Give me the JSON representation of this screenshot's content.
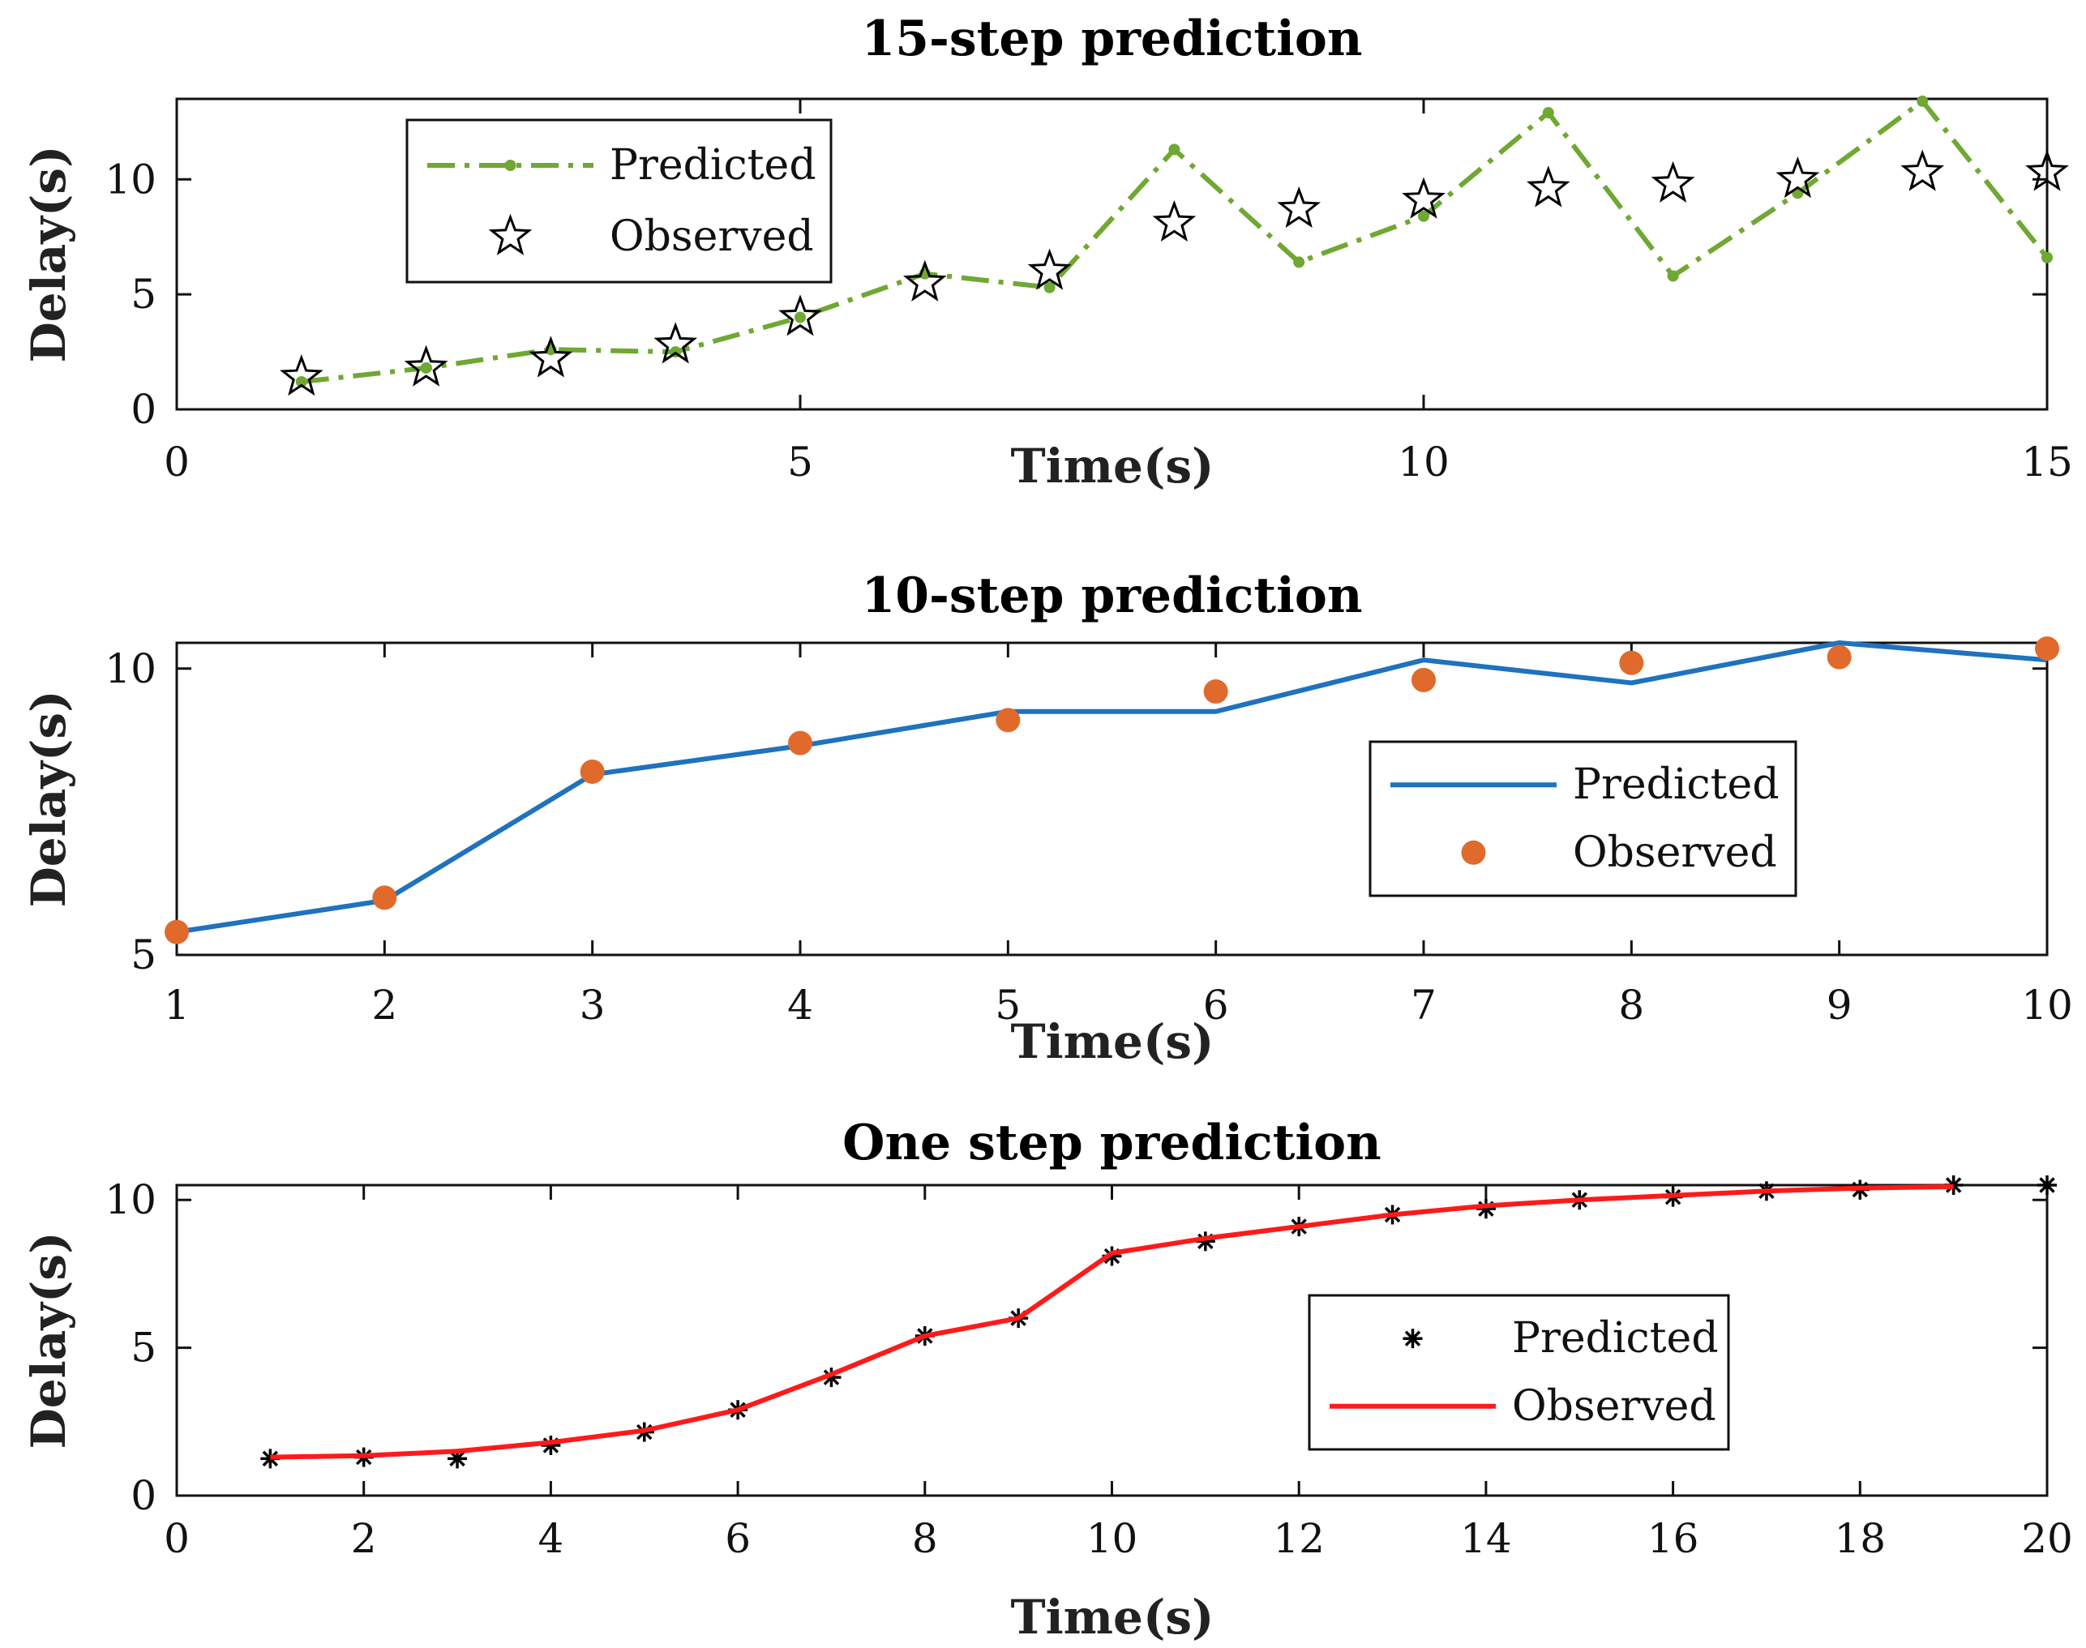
{
  "chart_data": [
    {
      "type": "line",
      "title": "15-step prediction",
      "xlabel": "Time(s)",
      "ylabel": "Delay(s)",
      "xlim": [
        0,
        15
      ],
      "ylim": [
        0,
        13.5
      ],
      "xticks": [
        0,
        5,
        10,
        15
      ],
      "yticks": [
        0,
        5,
        10
      ],
      "grid": false,
      "legend_position": "top-left",
      "series": [
        {
          "name": "Predicted",
          "style": "dash-dot with point markers",
          "color": "#6fa832",
          "x": [
            1,
            2,
            3,
            4,
            5,
            6,
            7,
            8,
            9,
            10,
            11,
            12,
            13,
            14,
            15
          ],
          "y": [
            1.2,
            1.8,
            2.6,
            2.5,
            4.0,
            5.9,
            5.3,
            11.3,
            6.4,
            8.4,
            12.9,
            5.8,
            9.4,
            13.4,
            6.6
          ]
        },
        {
          "name": "Observed",
          "style": "pentagram markers",
          "color": "#000000",
          "x": [
            1,
            2,
            3,
            4,
            5,
            6,
            7,
            8,
            9,
            10,
            11,
            12,
            13,
            14,
            15
          ],
          "y": [
            1.4,
            1.8,
            2.2,
            2.8,
            4.0,
            5.5,
            6.0,
            8.1,
            8.7,
            9.1,
            9.6,
            9.8,
            10.0,
            10.3,
            10.3
          ]
        }
      ]
    },
    {
      "type": "line",
      "title": "10-step prediction",
      "xlabel": "Time(s)",
      "ylabel": "Delay(s)",
      "xlim": [
        1,
        10
      ],
      "ylim": [
        5,
        10.45
      ],
      "xticks": [
        1,
        2,
        3,
        4,
        5,
        6,
        7,
        8,
        9,
        10
      ],
      "yticks": [
        5,
        10
      ],
      "grid": false,
      "legend_position": "right",
      "series": [
        {
          "name": "Predicted",
          "style": "solid line",
          "color": "#1f72bd",
          "x": [
            1,
            2,
            3,
            4,
            5,
            6,
            7,
            8,
            9,
            10
          ],
          "y": [
            5.4,
            5.95,
            8.15,
            8.65,
            9.25,
            9.25,
            10.15,
            9.75,
            10.45,
            10.15
          ]
        },
        {
          "name": "Observed",
          "style": "filled circle markers",
          "color": "#e06a2c",
          "x": [
            1,
            2,
            3,
            4,
            5,
            6,
            7,
            8,
            9,
            10
          ],
          "y": [
            5.4,
            6.0,
            8.2,
            8.7,
            9.1,
            9.6,
            9.8,
            10.1,
            10.2,
            10.35
          ]
        }
      ]
    },
    {
      "type": "line",
      "title": "One step prediction",
      "xlabel": "Time(s)",
      "ylabel": "Delay(s)",
      "xlim": [
        0,
        20
      ],
      "ylim": [
        0,
        10.5
      ],
      "xticks": [
        0,
        2,
        4,
        6,
        8,
        10,
        12,
        14,
        16,
        18,
        20
      ],
      "yticks": [
        0,
        5,
        10
      ],
      "grid": false,
      "legend_position": "right",
      "series": [
        {
          "name": "Predicted",
          "style": "asterisk markers",
          "color": "#000000",
          "x": [
            1,
            2,
            3,
            4,
            5,
            6,
            7,
            8,
            9,
            10,
            11,
            12,
            13,
            14,
            15,
            16,
            17,
            18,
            19,
            20
          ],
          "y": [
            1.25,
            1.3,
            1.25,
            1.7,
            2.15,
            2.9,
            4.0,
            5.4,
            6.0,
            8.1,
            8.6,
            9.1,
            9.5,
            9.7,
            10.0,
            10.1,
            10.3,
            10.35,
            10.5,
            10.5
          ]
        },
        {
          "name": "Observed",
          "style": "solid line",
          "color": "#ff1a1a",
          "x": [
            1,
            2,
            3,
            4,
            5,
            6,
            7,
            8,
            9,
            10,
            11,
            12,
            13,
            14,
            15,
            16,
            17,
            18,
            19
          ],
          "y": [
            1.3,
            1.35,
            1.5,
            1.8,
            2.2,
            2.9,
            4.1,
            5.4,
            6.0,
            8.2,
            8.7,
            9.1,
            9.5,
            9.8,
            10.0,
            10.15,
            10.3,
            10.4,
            10.45
          ]
        }
      ]
    }
  ],
  "colors": {
    "predicted_15": "#6fa832",
    "predicted_10": "#1f72bd",
    "observed_10": "#e06a2c",
    "observed_1": "#ff1a1a",
    "axes": "#111111"
  }
}
